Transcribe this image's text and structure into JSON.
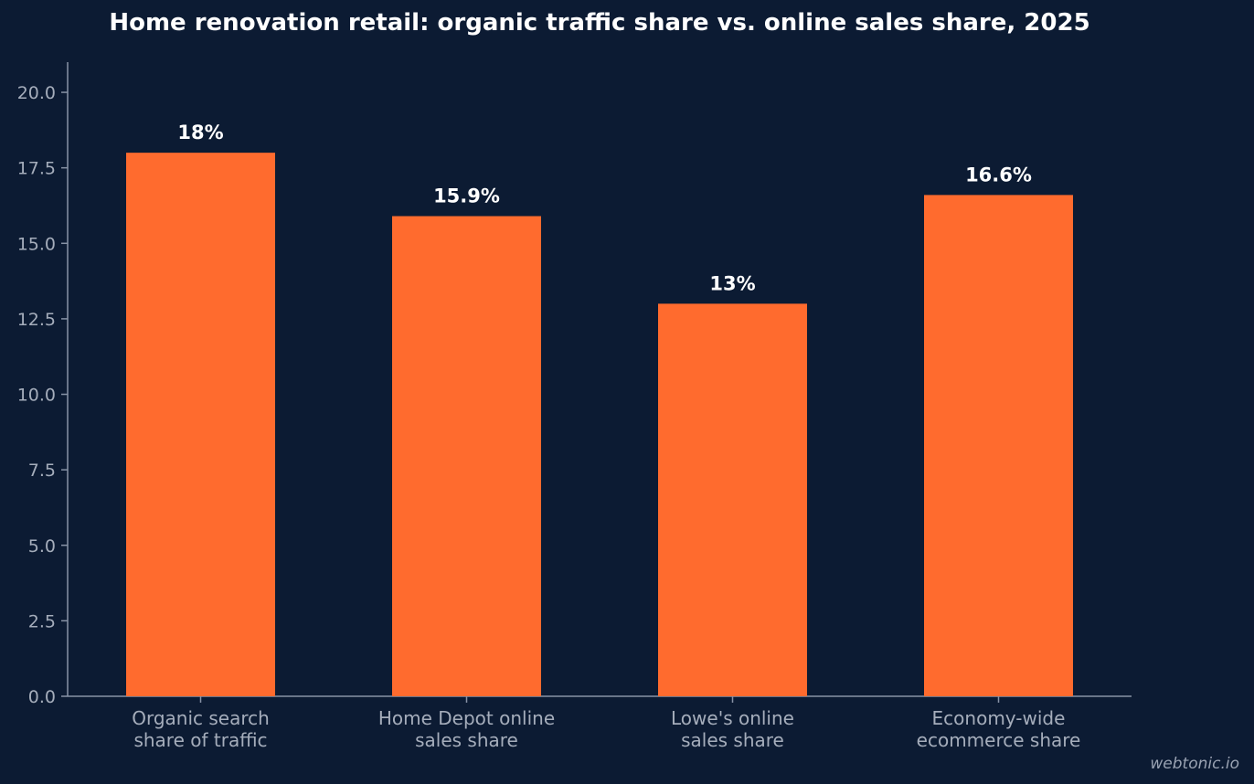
{
  "chart_data": {
    "type": "bar",
    "title": "Home renovation retail: organic traffic share vs. online sales share, 2025",
    "xlabel": "",
    "ylabel": "",
    "categories": [
      [
        "Organic search",
        "share of traffic"
      ],
      [
        "Home Depot online",
        "sales share"
      ],
      [
        "Lowe's online",
        "sales share"
      ],
      [
        "Economy-wide",
        "ecommerce share"
      ]
    ],
    "values": [
      18,
      15.9,
      13,
      16.6
    ],
    "data_labels": [
      "18%",
      "15.9%",
      "13%",
      "16.6%"
    ],
    "ylim": [
      0,
      21
    ],
    "yticks": [
      "0.0",
      "2.5",
      "5.0",
      "7.5",
      "10.0",
      "12.5",
      "15.0",
      "17.5",
      "20.0"
    ],
    "grid": false,
    "bar_color": "#ff6b2e",
    "axis_color": "#8893a6",
    "background": "#0c1b33"
  },
  "watermark": "webtonic.io"
}
